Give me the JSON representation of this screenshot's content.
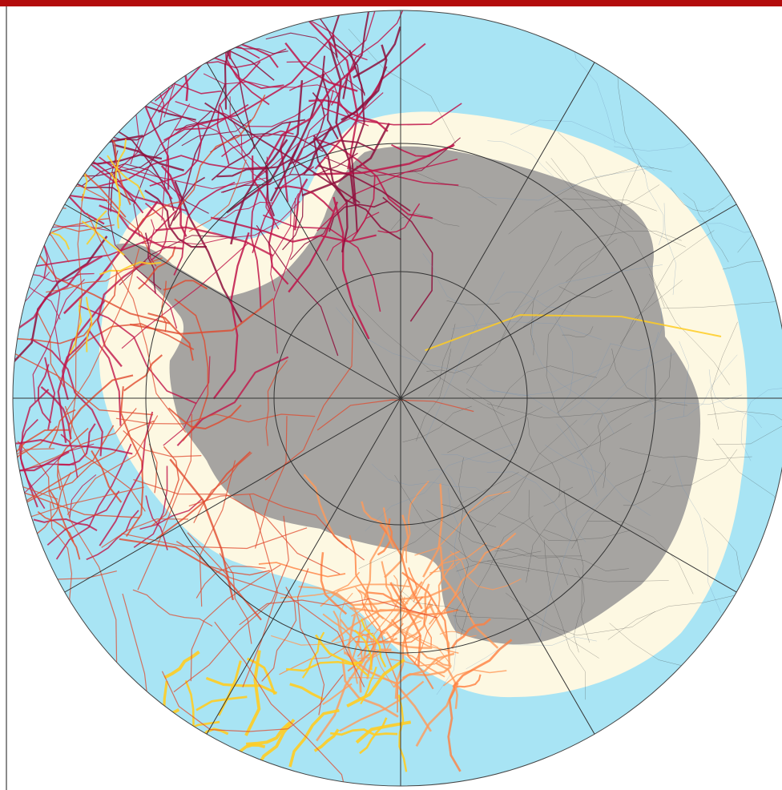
{
  "map": {
    "projection": "south-polar-stereographic",
    "graticule": {
      "parallels": 3,
      "meridians": 12
    },
    "colors": {
      "top_bar": "#b30c0c",
      "ocean": "#a8e4f4",
      "ice_shelf": "#fdf8e2",
      "land": "#a6a4a1",
      "graticule": "#333333",
      "track_palette": [
        "#c0154a",
        "#8e0f3c",
        "#ff8040",
        "#ffcc22",
        "#e04a2e",
        "#ff9a5a",
        "#3a3a3a",
        "#6a8fb6"
      ]
    },
    "layers": [
      "ocean",
      "ice-shelf",
      "continent",
      "ship-tracks",
      "graticule"
    ]
  }
}
